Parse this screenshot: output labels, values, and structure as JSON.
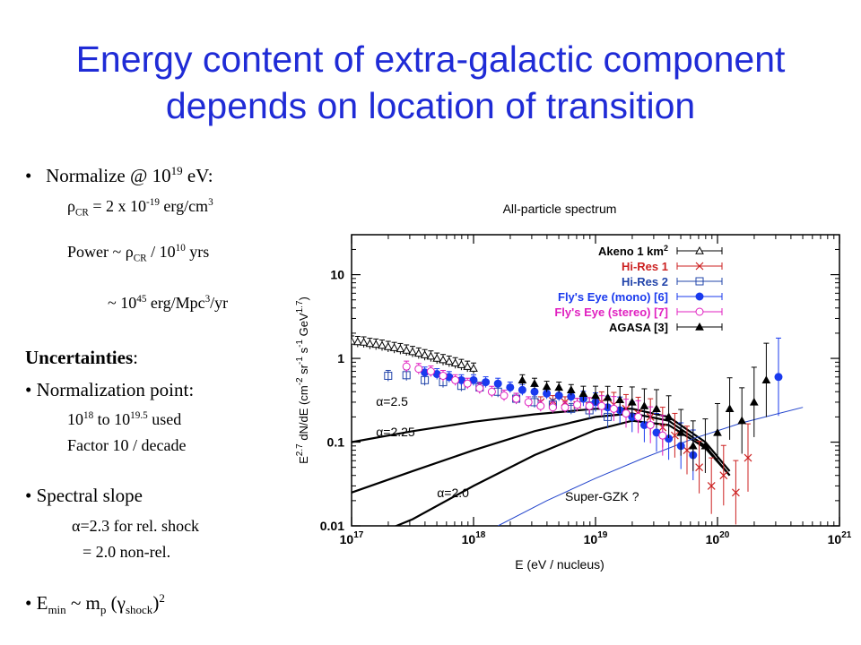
{
  "title": {
    "line1": "Energy content of extra-galactic component",
    "line2": "depends on location of transition"
  },
  "bullets": {
    "bullet_glyph": "•",
    "normalize": {
      "text": "Normalize @ 10",
      "exp": "19",
      "unit": " eV:"
    },
    "rho": {
      "sym": "ρ",
      "sub": "CR",
      "text": " = 2 x 10",
      "exp": "-19",
      "unit": " erg/cm",
      "unit_exp": "3"
    },
    "power": {
      "text": "Power ~ ",
      "sym": "ρ",
      "sub": "CR",
      "mid": " / 10",
      "exp": "10",
      "unit": " yrs"
    },
    "power2": {
      "text": "~ 10",
      "exp": "45",
      "unit": " erg/Mpc",
      "unit_exp": "3",
      "tail": "/yr"
    },
    "uncertainties": "Uncertainties",
    "uncertainties_colon": ":",
    "norm_point": "Normalization point:",
    "norm_range": {
      "a": "10",
      "a_exp": "18",
      "mid": " to 10",
      "b_exp": "19.5",
      "tail": " used"
    },
    "factor": "Factor 10 / decade",
    "spectral_slope": "Spectral slope",
    "alpha1": {
      "sym": "α",
      "text": "=2.3 for rel. shock"
    },
    "alpha2": "= 2.0 non-rel.",
    "emin": {
      "E": "E",
      "E_sub": "min",
      "mid": " ~ m",
      "m_sub": "p",
      "open": " (",
      "gamma": "γ",
      "g_sub": "shock",
      "close": ")",
      "close_exp": "2"
    }
  },
  "chart_data": {
    "type": "scatter",
    "title": "All-particle spectrum",
    "xlabel": "E     (eV / nucleus)",
    "ylabel": "E^2.7 dN/dE   (cm^-2 sr^-1 s^-1 GeV^1.7)",
    "xscale": "log",
    "yscale": "log",
    "xlim": [
      1e+17,
      1e+21
    ],
    "ylim": [
      0.01,
      30
    ],
    "x_tick_labels": [
      "10^17",
      "10^18",
      "10^19",
      "10^20",
      "10^21"
    ],
    "y_tick_labels": [
      "0.01",
      "0.1",
      "1",
      "10"
    ],
    "legend_position": "top-right",
    "series": [
      {
        "name": "Akeno 1 km^2",
        "color": "#000000",
        "marker": "triangle-open",
        "points": [
          [
            17.0,
            1.6
          ],
          [
            17.05,
            1.58
          ],
          [
            17.1,
            1.56
          ],
          [
            17.15,
            1.5
          ],
          [
            17.2,
            1.47
          ],
          [
            17.25,
            1.43
          ],
          [
            17.3,
            1.38
          ],
          [
            17.35,
            1.34
          ],
          [
            17.4,
            1.3
          ],
          [
            17.45,
            1.25
          ],
          [
            17.5,
            1.2
          ],
          [
            17.55,
            1.15
          ],
          [
            17.6,
            1.1
          ],
          [
            17.65,
            1.06
          ],
          [
            17.7,
            1.0
          ],
          [
            17.75,
            0.96
          ],
          [
            17.8,
            0.92
          ],
          [
            17.85,
            0.88
          ],
          [
            17.9,
            0.84
          ],
          [
            17.95,
            0.8
          ],
          [
            18.0,
            0.76
          ]
        ]
      },
      {
        "name": "Hi-Res 1",
        "color": "#cc2222",
        "marker": "x",
        "points": [
          [
            18.55,
            0.3
          ],
          [
            18.65,
            0.31
          ],
          [
            18.75,
            0.3
          ],
          [
            18.85,
            0.28
          ],
          [
            18.95,
            0.27
          ],
          [
            19.05,
            0.3
          ],
          [
            19.15,
            0.28
          ],
          [
            19.25,
            0.25
          ],
          [
            19.35,
            0.22
          ],
          [
            19.45,
            0.2
          ],
          [
            19.55,
            0.15
          ],
          [
            19.65,
            0.12
          ],
          [
            19.75,
            0.08
          ],
          [
            19.85,
            0.05
          ],
          [
            19.95,
            0.03
          ],
          [
            20.05,
            0.04
          ],
          [
            20.15,
            0.025
          ],
          [
            20.25,
            0.065
          ]
        ]
      },
      {
        "name": "Hi-Res 2",
        "color": "#2244aa",
        "marker": "square-open",
        "points": [
          [
            17.3,
            0.62
          ],
          [
            17.45,
            0.63
          ],
          [
            17.6,
            0.55
          ],
          [
            17.75,
            0.52
          ],
          [
            17.9,
            0.47
          ],
          [
            18.05,
            0.45
          ],
          [
            18.2,
            0.4
          ],
          [
            18.35,
            0.33
          ],
          [
            18.5,
            0.3
          ],
          [
            18.65,
            0.28
          ],
          [
            18.8,
            0.25
          ],
          [
            18.95,
            0.24
          ],
          [
            19.1,
            0.2
          ]
        ]
      },
      {
        "name": "Fly's Eye (mono) [6]",
        "color": "#1a3aee",
        "marker": "circle-filled",
        "points": [
          [
            17.6,
            0.68
          ],
          [
            17.7,
            0.65
          ],
          [
            17.8,
            0.6
          ],
          [
            17.9,
            0.55
          ],
          [
            18.0,
            0.55
          ],
          [
            18.1,
            0.52
          ],
          [
            18.2,
            0.5
          ],
          [
            18.3,
            0.45
          ],
          [
            18.4,
            0.42
          ],
          [
            18.5,
            0.4
          ],
          [
            18.6,
            0.38
          ],
          [
            18.7,
            0.36
          ],
          [
            18.8,
            0.35
          ],
          [
            18.9,
            0.33
          ],
          [
            19.0,
            0.3
          ],
          [
            19.1,
            0.26
          ],
          [
            19.2,
            0.24
          ],
          [
            19.3,
            0.2
          ],
          [
            19.4,
            0.16
          ],
          [
            19.5,
            0.13
          ],
          [
            19.6,
            0.11
          ],
          [
            19.7,
            0.09
          ],
          [
            19.8,
            0.07
          ],
          [
            20.5,
            0.6
          ]
        ]
      },
      {
        "name": "Fly's Eye (stereo) [7]",
        "color": "#e020c0",
        "marker": "circle-open",
        "points": [
          [
            17.45,
            0.8
          ],
          [
            17.55,
            0.75
          ],
          [
            17.65,
            0.7
          ],
          [
            17.75,
            0.62
          ],
          [
            17.85,
            0.55
          ],
          [
            17.95,
            0.5
          ],
          [
            18.05,
            0.44
          ],
          [
            18.15,
            0.4
          ],
          [
            18.25,
            0.36
          ],
          [
            18.35,
            0.33
          ],
          [
            18.45,
            0.3
          ],
          [
            18.55,
            0.27
          ],
          [
            18.65,
            0.26
          ],
          [
            18.75,
            0.26
          ],
          [
            18.85,
            0.28
          ],
          [
            18.95,
            0.27
          ],
          [
            19.05,
            0.27
          ],
          [
            19.15,
            0.25
          ],
          [
            19.25,
            0.22
          ],
          [
            19.35,
            0.2
          ],
          [
            19.45,
            0.16
          ],
          [
            19.55,
            0.12
          ]
        ]
      },
      {
        "name": "AGASA [3]",
        "color": "#000000",
        "marker": "triangle-filled",
        "points": [
          [
            18.4,
            0.55
          ],
          [
            18.5,
            0.5
          ],
          [
            18.6,
            0.46
          ],
          [
            18.7,
            0.45
          ],
          [
            18.8,
            0.42
          ],
          [
            18.9,
            0.38
          ],
          [
            19.0,
            0.36
          ],
          [
            19.1,
            0.34
          ],
          [
            19.2,
            0.32
          ],
          [
            19.3,
            0.3
          ],
          [
            19.4,
            0.27
          ],
          [
            19.5,
            0.25
          ],
          [
            19.6,
            0.2
          ],
          [
            19.7,
            0.13
          ],
          [
            19.8,
            0.09
          ],
          [
            19.9,
            0.09
          ],
          [
            20.0,
            0.13
          ],
          [
            20.1,
            0.25
          ],
          [
            20.2,
            0.18
          ],
          [
            20.3,
            0.3
          ],
          [
            20.4,
            0.55
          ]
        ]
      }
    ],
    "model_curves": [
      {
        "name": "α=2.5",
        "points": [
          [
            17.0,
            0.1
          ],
          [
            17.5,
            0.135
          ],
          [
            18.0,
            0.175
          ],
          [
            18.5,
            0.215
          ],
          [
            19.0,
            0.25
          ],
          [
            19.3,
            0.25
          ],
          [
            19.6,
            0.2
          ],
          [
            19.9,
            0.1
          ],
          [
            20.1,
            0.045
          ]
        ]
      },
      {
        "name": "α=2.25",
        "points": [
          [
            17.0,
            0.025
          ],
          [
            17.5,
            0.045
          ],
          [
            18.0,
            0.08
          ],
          [
            18.5,
            0.135
          ],
          [
            19.0,
            0.2
          ],
          [
            19.3,
            0.22
          ],
          [
            19.6,
            0.18
          ],
          [
            19.9,
            0.09
          ],
          [
            20.1,
            0.04
          ]
        ]
      },
      {
        "name": "α=2.0",
        "points": [
          [
            17.0,
            0.006
          ],
          [
            17.5,
            0.012
          ],
          [
            18.0,
            0.03
          ],
          [
            18.5,
            0.07
          ],
          [
            19.0,
            0.14
          ],
          [
            19.3,
            0.18
          ],
          [
            19.6,
            0.16
          ],
          [
            19.9,
            0.085
          ],
          [
            20.1,
            0.04
          ]
        ]
      },
      {
        "name": "Super-GZK ?",
        "color": "#2244cc",
        "points": [
          [
            18.2,
            0.01
          ],
          [
            18.6,
            0.02
          ],
          [
            19.0,
            0.037
          ],
          [
            19.4,
            0.065
          ],
          [
            19.8,
            0.11
          ],
          [
            20.2,
            0.17
          ],
          [
            20.7,
            0.26
          ]
        ]
      }
    ]
  }
}
